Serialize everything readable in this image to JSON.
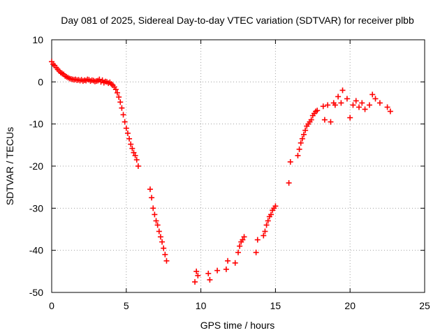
{
  "chart_data": {
    "type": "scatter",
    "title": "Day 081 of 2025, Sidereal Day-to-day VTEC variation (SDTVAR) for receiver plbb",
    "xlabel": "GPS time / hours",
    "ylabel": "SDTVAR / TECUs",
    "xlim": [
      0,
      25
    ],
    "ylim": [
      -50,
      10
    ],
    "xticks": [
      0,
      5,
      10,
      15,
      20,
      25
    ],
    "yticks": [
      10,
      0,
      -10,
      -20,
      -30,
      -40,
      -50
    ],
    "grid": true,
    "marker": "+",
    "series": [
      {
        "name": "SDTVAR",
        "color": "#ff0000",
        "x": [
          0.0,
          0.1,
          0.2,
          0.3,
          0.4,
          0.5,
          0.6,
          0.7,
          0.8,
          0.9,
          1.0,
          1.1,
          1.2,
          1.3,
          1.4,
          1.5,
          1.6,
          1.7,
          1.8,
          1.9,
          2.0,
          2.1,
          2.2,
          2.3,
          2.4,
          2.5,
          2.6,
          2.7,
          2.8,
          2.9,
          3.0,
          3.1,
          3.2,
          3.3,
          3.4,
          3.5,
          3.6,
          3.7,
          3.8,
          3.9,
          4.0,
          4.1,
          4.2,
          4.3,
          4.4,
          4.5,
          4.6,
          4.7,
          4.8,
          4.9,
          5.0,
          5.1,
          5.2,
          5.3,
          5.4,
          5.5,
          5.6,
          5.7,
          5.8,
          6.6,
          6.7,
          6.8,
          6.9,
          7.0,
          7.1,
          7.2,
          7.3,
          7.4,
          7.5,
          7.6,
          7.7,
          9.6,
          9.7,
          9.8,
          10.5,
          10.6,
          11.1,
          11.7,
          11.8,
          12.3,
          12.5,
          12.6,
          12.7,
          12.8,
          12.9,
          13.7,
          13.8,
          14.2,
          14.3,
          14.4,
          14.5,
          14.6,
          14.7,
          14.8,
          14.9,
          15.0,
          15.9,
          16.0,
          16.5,
          16.6,
          16.7,
          16.8,
          16.9,
          17.0,
          17.1,
          17.2,
          17.3,
          17.4,
          17.5,
          17.6,
          17.7,
          17.8,
          18.2,
          18.3,
          18.5,
          18.7,
          18.9,
          19.0,
          19.2,
          19.4,
          19.5,
          19.8,
          20.0,
          20.2,
          20.4,
          20.6,
          20.8,
          21.0,
          21.3,
          21.5,
          21.7,
          22.0,
          22.5,
          22.7
        ],
        "y": [
          4.8,
          4.2,
          3.9,
          3.4,
          3.0,
          2.6,
          2.2,
          2.0,
          1.8,
          1.4,
          1.2,
          1.0,
          0.8,
          0.7,
          0.6,
          0.5,
          0.6,
          0.4,
          0.5,
          0.3,
          0.5,
          0.2,
          0.4,
          0.3,
          0.6,
          0.5,
          0.2,
          0.4,
          0.3,
          0.1,
          0.2,
          0.3,
          0.6,
          0.0,
          0.4,
          -0.2,
          0.1,
          0.0,
          -0.3,
          -0.1,
          -0.5,
          -0.8,
          -1.2,
          -1.8,
          -2.6,
          -3.6,
          -4.8,
          -6.2,
          -7.8,
          -9.5,
          -11.0,
          -12.2,
          -13.5,
          -14.8,
          -15.8,
          -16.8,
          -17.5,
          -18.5,
          -20.0,
          -25.5,
          -27.5,
          -30.0,
          -31.5,
          -33.0,
          -34.0,
          -35.5,
          -36.8,
          -38.0,
          -39.5,
          -41.0,
          -42.5,
          -47.5,
          -45.0,
          -46.0,
          -45.5,
          -47.0,
          -44.8,
          -44.5,
          -42.5,
          -43.0,
          -40.5,
          -39.0,
          -38.0,
          -37.5,
          -36.8,
          -40.5,
          -37.5,
          -36.5,
          -35.5,
          -34.0,
          -33.0,
          -32.0,
          -31.5,
          -30.5,
          -30.0,
          -29.5,
          -24.0,
          -19.0,
          -17.5,
          -16.0,
          -14.5,
          -13.5,
          -12.5,
          -11.5,
          -10.5,
          -10.0,
          -9.5,
          -9.0,
          -8.0,
          -7.5,
          -7.0,
          -6.8,
          -5.8,
          -9.0,
          -5.5,
          -9.5,
          -5.0,
          -5.5,
          -3.5,
          -5.0,
          -2.0,
          -4.0,
          -8.5,
          -5.5,
          -4.5,
          -6.0,
          -5.0,
          -6.5,
          -5.5,
          -3.0,
          -4.0,
          -5.0,
          -6.0,
          -7.0
        ]
      }
    ]
  }
}
